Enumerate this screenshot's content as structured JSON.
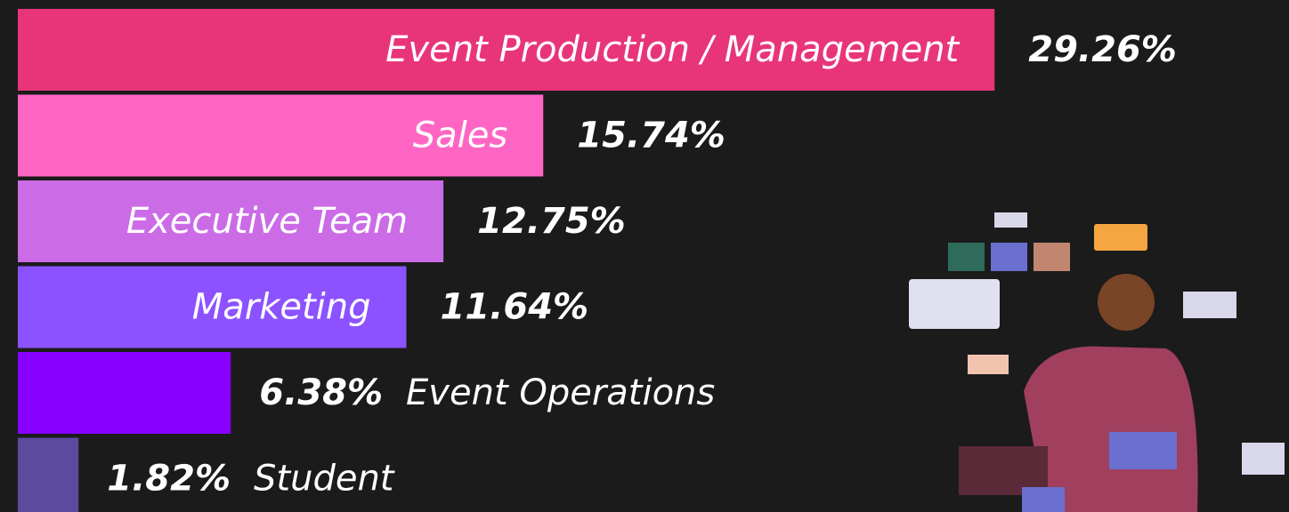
{
  "chart_data": {
    "type": "bar",
    "orientation": "horizontal",
    "categories": [
      "Event Production / Management",
      "Sales",
      "Executive Team",
      "Marketing",
      "Event Operations",
      "Student"
    ],
    "values": [
      29.26,
      15.74,
      12.75,
      11.64,
      6.38,
      1.82
    ],
    "value_labels": [
      "29.26%",
      "15.74%",
      "12.75%",
      "11.64%",
      "6.38%",
      "1.82%"
    ],
    "colors": [
      "#e8357a",
      "#ff66c4",
      "#cb6ce6",
      "#8c52ff",
      "#8800ff",
      "#5b4a9e"
    ],
    "xlim": [
      0,
      32
    ]
  }
}
